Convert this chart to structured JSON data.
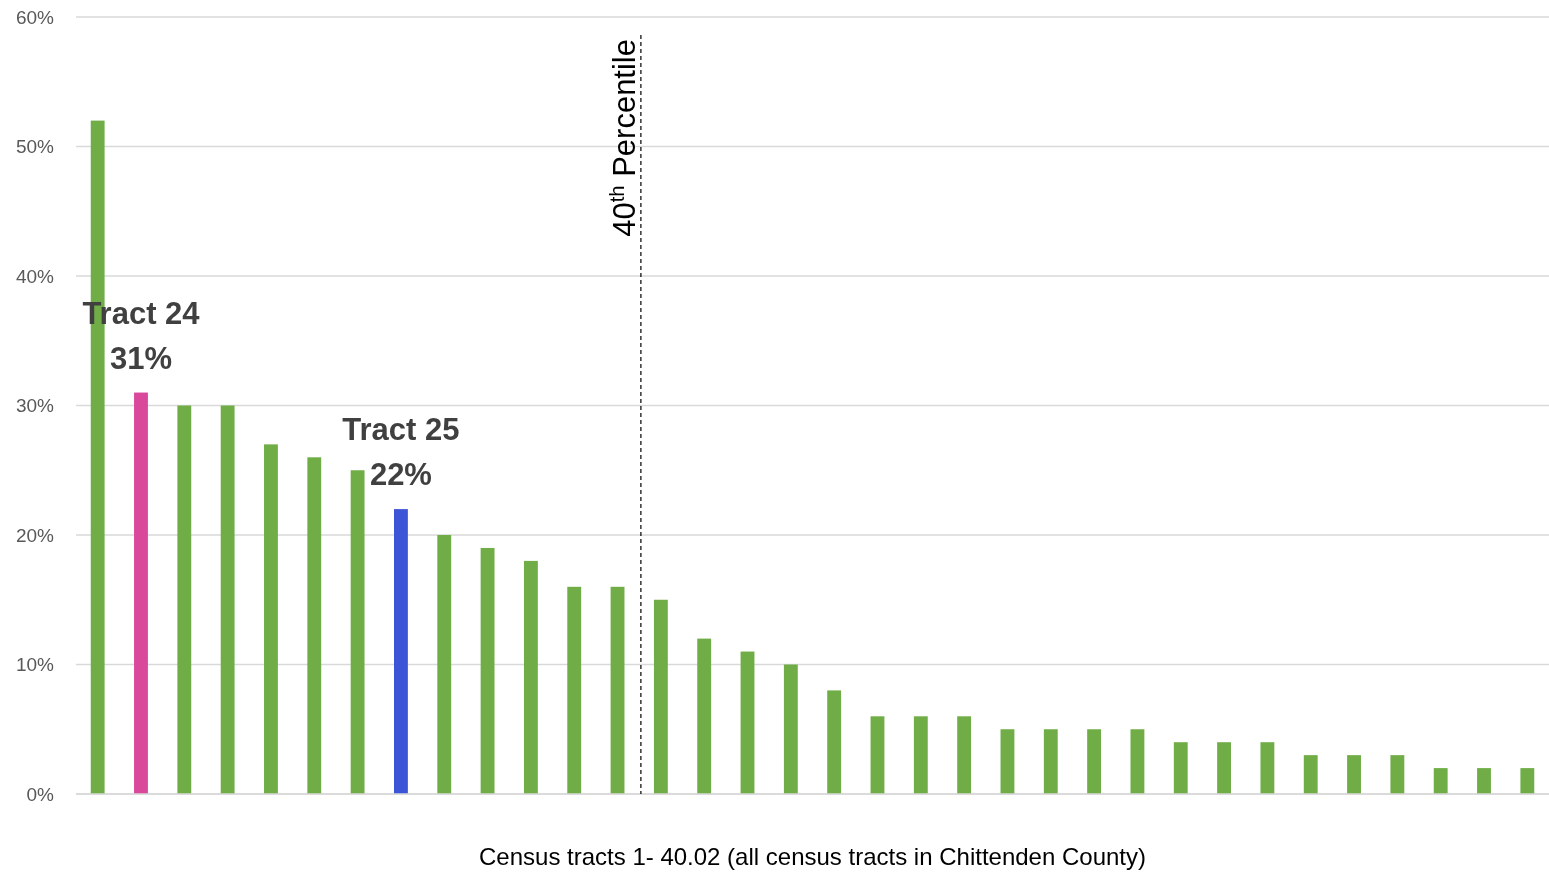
{
  "chart_data": {
    "type": "bar",
    "categories": [
      null,
      null,
      null,
      null,
      null,
      null,
      null,
      null,
      null,
      null,
      null,
      null,
      null,
      null,
      null,
      null,
      null,
      null,
      null,
      null,
      null,
      null,
      null,
      null,
      null,
      null,
      null,
      null,
      null,
      null,
      null,
      null,
      null,
      null
    ],
    "value_labels": [
      null,
      "Tract 24\n31%",
      null,
      null,
      null,
      null,
      null,
      "Tract 25\n22%",
      null,
      null,
      null,
      null,
      null,
      null,
      null,
      null,
      null,
      null,
      null,
      null,
      null,
      null,
      null,
      null,
      null,
      null,
      null,
      null,
      null,
      null,
      null,
      null,
      null,
      null
    ],
    "values": [
      52,
      31,
      30,
      30,
      27,
      26,
      25,
      22,
      20,
      19,
      18,
      16,
      16,
      15,
      12,
      11,
      10,
      8,
      6,
      6,
      6,
      5,
      5,
      5,
      5,
      4,
      4,
      4,
      3,
      3,
      3,
      2,
      2,
      2
    ],
    "colors": [
      "#70ad47",
      "#d9489b",
      "#70ad47",
      "#70ad47",
      "#70ad47",
      "#70ad47",
      "#70ad47",
      "#3b55d6",
      "#70ad47",
      "#70ad47",
      "#70ad47",
      "#70ad47",
      "#70ad47",
      "#70ad47",
      "#70ad47",
      "#70ad47",
      "#70ad47",
      "#70ad47",
      "#70ad47",
      "#70ad47",
      "#70ad47",
      "#70ad47",
      "#70ad47",
      "#70ad47",
      "#70ad47",
      "#70ad47",
      "#70ad47",
      "#70ad47",
      "#70ad47",
      "#70ad47",
      "#70ad47",
      "#70ad47",
      "#70ad47",
      "#70ad47"
    ],
    "ylim": [
      0,
      60
    ],
    "yticks": [
      {
        "value": 0,
        "label": "0%"
      },
      {
        "value": 10,
        "label": "10%"
      },
      {
        "value": 20,
        "label": "20%"
      },
      {
        "value": 30,
        "label": "30%"
      },
      {
        "value": 40,
        "label": "40%"
      },
      {
        "value": 50,
        "label": "50%"
      },
      {
        "value": 60,
        "label": "60%"
      }
    ],
    "grid": "y",
    "xlabel": "Census tracts 1- 40.02 (all census tracts in Chittenden County)",
    "annotations": [
      "40$^{th}$ Percentile"
    ]
  }
}
